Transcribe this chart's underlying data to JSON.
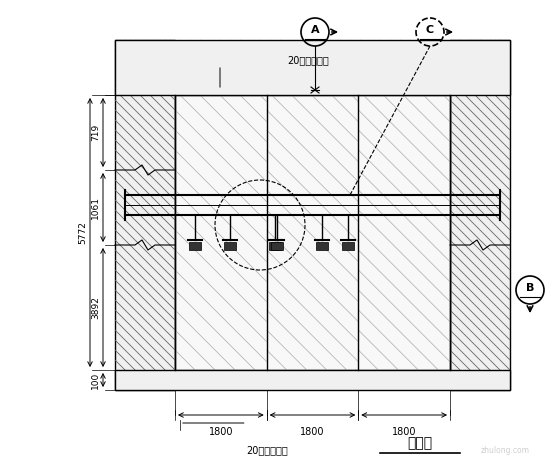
{
  "bg_color": "#ffffff",
  "line_color": "#000000",
  "title": "立面图",
  "label_glass_top": "20厚钢化玻璃",
  "label_glass_bottom": "20厚钢化玻璃",
  "dim_719": "719",
  "dim_1061": "1061",
  "dim_5772": "5772",
  "dim_3892": "3892",
  "dim_100": "100",
  "section_A": "A",
  "section_B": "B",
  "section_C": "C"
}
